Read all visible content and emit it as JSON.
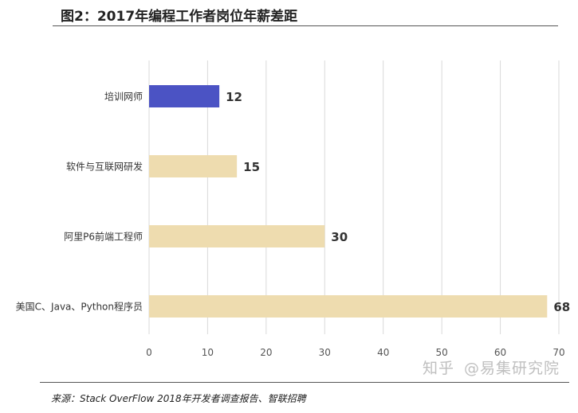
{
  "title": "图2：2017年编程工作者岗位年薪差距",
  "source": "来源：Stack OverFlow 2018年开发者调查报告、智联招聘",
  "watermark": {
    "left": "知乎",
    "right": "@易集研究院"
  },
  "colors": {
    "highlight": "#4b53c4",
    "bar": "#eedcaf",
    "grid": "#d9d9d9"
  },
  "chart_data": {
    "type": "bar",
    "orientation": "horizontal",
    "categories": [
      "培训网师",
      "软件与互联网研发",
      "阿里P6前端工程师",
      "美国C、Java、Python程序员"
    ],
    "values": [
      12,
      15,
      30,
      68
    ],
    "data_labels": [
      "12",
      "15",
      "30",
      "68"
    ],
    "highlight_index": 0,
    "xlim": [
      0,
      70
    ],
    "ticks": [
      0,
      10,
      20,
      30,
      40,
      50,
      60,
      70
    ],
    "grid": true,
    "legend": "none"
  }
}
